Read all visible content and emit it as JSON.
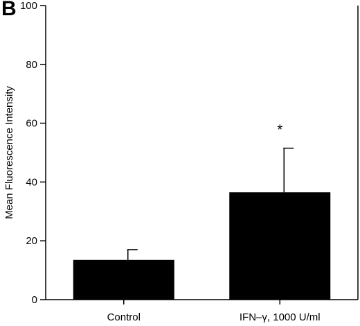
{
  "panel_label": "B",
  "chart_data": {
    "type": "bar",
    "title": "",
    "xlabel": "",
    "ylabel": "Mean Fluorescence Intensity",
    "categories": [
      "Control",
      "IFN–γ, 1000 U/ml"
    ],
    "values": [
      13.5,
      36.5
    ],
    "error_upper": [
      17,
      51.5
    ],
    "annotations": [
      "",
      "*"
    ],
    "ylim": [
      0,
      100
    ],
    "yticks": [
      0,
      20,
      40,
      60,
      80,
      100
    ],
    "grid": false,
    "legend": "none",
    "bar_color": "#000000"
  }
}
